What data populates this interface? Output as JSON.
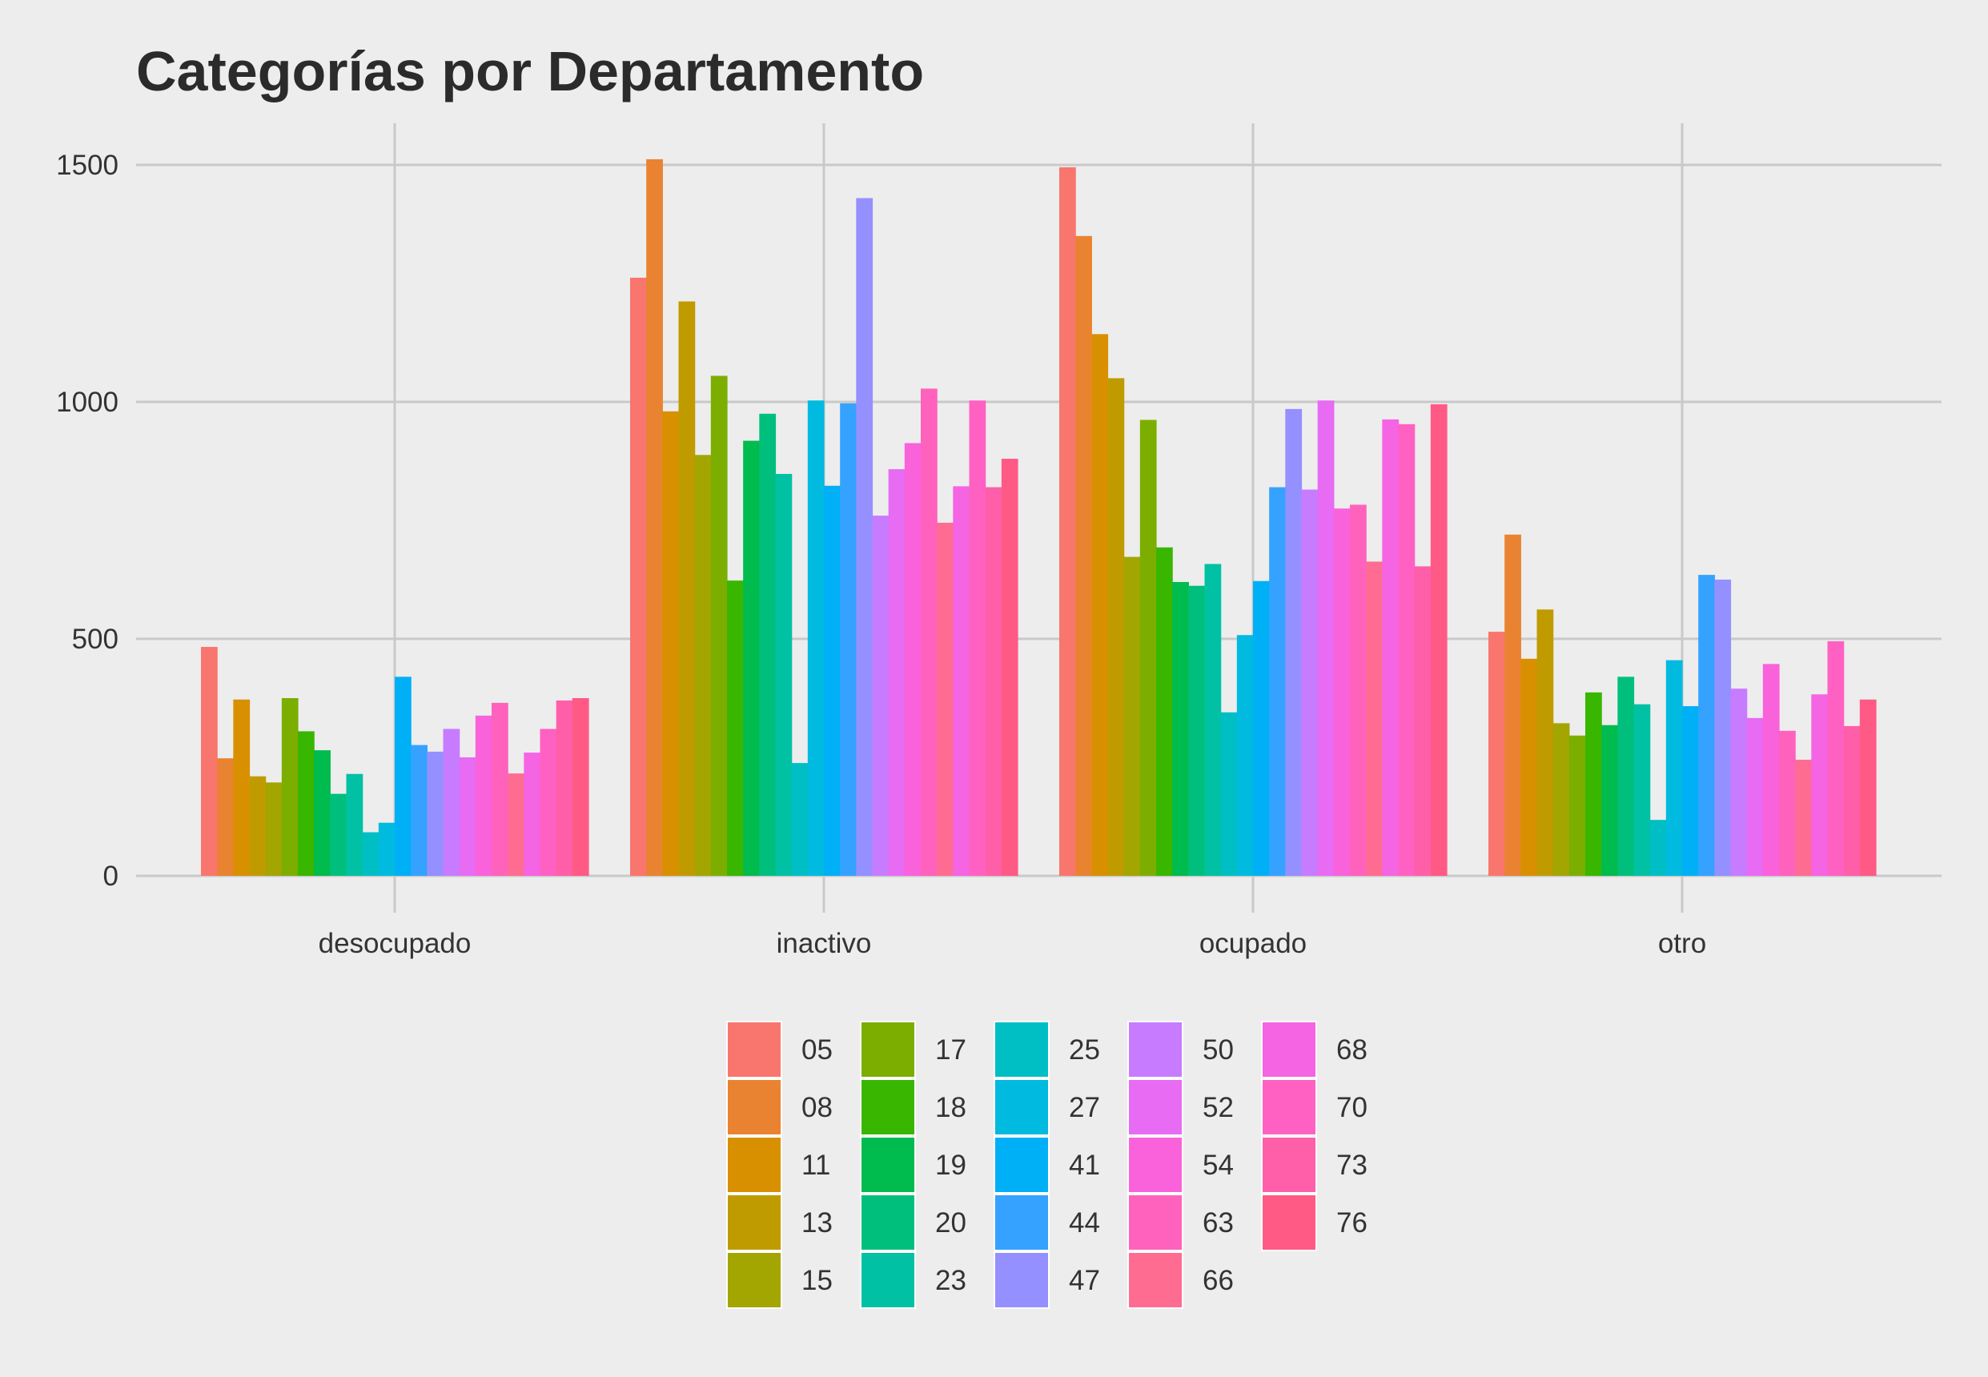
{
  "chart_data": {
    "type": "bar",
    "title": "Categorías por Departamento",
    "xlabel": "",
    "ylabel": "",
    "ylim": [
      0,
      1600
    ],
    "yticks": [
      0,
      500,
      1000,
      1500
    ],
    "grid": true,
    "legend_position": "bottom",
    "categories": [
      "desocupado",
      "inactivo",
      "ocupado",
      "otro"
    ],
    "series": [
      {
        "name": "05",
        "color": "#F8766D",
        "values": [
          483,
          1262,
          1495,
          515
        ]
      },
      {
        "name": "08",
        "color": "#EA8331",
        "values": [
          248,
          1512,
          1350,
          720
        ]
      },
      {
        "name": "11",
        "color": "#D89000",
        "values": [
          372,
          980,
          1143,
          458
        ]
      },
      {
        "name": "13",
        "color": "#C09B00",
        "values": [
          210,
          1212,
          1050,
          562
        ]
      },
      {
        "name": "15",
        "color": "#A3A500",
        "values": [
          197,
          888,
          673,
          322
        ]
      },
      {
        "name": "17",
        "color": "#7CAE00",
        "values": [
          375,
          1055,
          962,
          296
        ]
      },
      {
        "name": "18",
        "color": "#39B600",
        "values": [
          305,
          623,
          693,
          387
        ]
      },
      {
        "name": "19",
        "color": "#00BB4E",
        "values": [
          265,
          918,
          620,
          318
        ]
      },
      {
        "name": "20",
        "color": "#00BF7D",
        "values": [
          173,
          975,
          612,
          420
        ]
      },
      {
        "name": "23",
        "color": "#00C1A3",
        "values": [
          215,
          848,
          658,
          362
        ]
      },
      {
        "name": "25",
        "color": "#00BFC4",
        "values": [
          92,
          238,
          345,
          118
        ]
      },
      {
        "name": "27",
        "color": "#00BAE0",
        "values": [
          112,
          1003,
          508,
          455
        ]
      },
      {
        "name": "41",
        "color": "#00B0F6",
        "values": [
          420,
          823,
          622,
          358
        ]
      },
      {
        "name": "44",
        "color": "#35A2FF",
        "values": [
          276,
          997,
          820,
          635
        ]
      },
      {
        "name": "47",
        "color": "#9590FF",
        "values": [
          262,
          1430,
          985,
          625
        ]
      },
      {
        "name": "50",
        "color": "#C77CFF",
        "values": [
          310,
          760,
          815,
          395
        ]
      },
      {
        "name": "52",
        "color": "#E76BF3",
        "values": [
          250,
          858,
          1003,
          333
        ]
      },
      {
        "name": "54",
        "color": "#FA62DB",
        "values": [
          338,
          913,
          775,
          447
        ]
      },
      {
        "name": "63",
        "color": "#FF62BC",
        "values": [
          365,
          1028,
          783,
          306
        ]
      },
      {
        "name": "66",
        "color": "#FF6C91",
        "values": [
          216,
          745,
          663,
          245
        ]
      },
      {
        "name": "68",
        "color": "#F564E3",
        "values": [
          260,
          822,
          963,
          383
        ]
      },
      {
        "name": "70",
        "color": "#FF61C3",
        "values": [
          310,
          1003,
          953,
          495
        ]
      },
      {
        "name": "73",
        "color": "#FF5FA8",
        "values": [
          370,
          820,
          653,
          316
        ]
      },
      {
        "name": "76",
        "color": "#FF5A85",
        "values": [
          375,
          880,
          995,
          372
        ]
      }
    ]
  }
}
